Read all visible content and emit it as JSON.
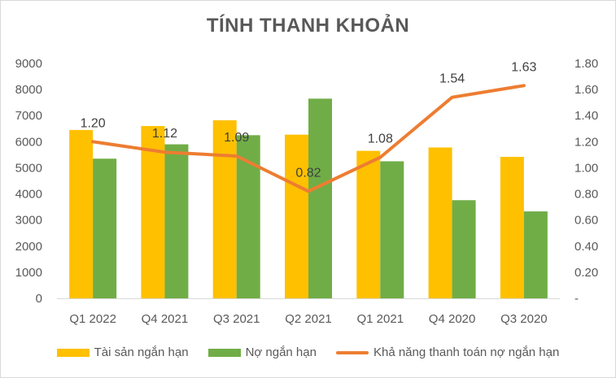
{
  "chart_data": {
    "type": "bar",
    "title": "TÍNH THANH KHOẢN",
    "categories": [
      "Q1 2022",
      "Q4 2021",
      "Q3 2021",
      "Q2 2021",
      "Q1 2021",
      "Q4 2020",
      "Q3 2020"
    ],
    "series": [
      {
        "name": "Tài sản ngắn hạn",
        "type": "bar",
        "axis": "left",
        "color": "#ffc000",
        "values": [
          6450,
          6600,
          6820,
          6270,
          5650,
          5780,
          5420
        ]
      },
      {
        "name": "Nợ ngắn hạn",
        "type": "bar",
        "axis": "left",
        "color": "#70ad47",
        "values": [
          5350,
          5900,
          6250,
          7650,
          5250,
          3760,
          3330
        ]
      },
      {
        "name": "Khả năng thanh toán nợ ngắn hạn",
        "type": "line",
        "axis": "right",
        "color": "#ed7d31",
        "values": [
          1.2,
          1.12,
          1.09,
          0.82,
          1.08,
          1.54,
          1.63
        ],
        "labels": [
          "1.20",
          "1.12",
          "1.09",
          "0.82",
          "1.08",
          "1.54",
          "1.63"
        ]
      }
    ],
    "y_left": {
      "ylim": [
        0,
        9000
      ],
      "ticks": [
        "0",
        "1000",
        "2000",
        "3000",
        "4000",
        "5000",
        "6000",
        "7000",
        "8000",
        "9000"
      ]
    },
    "y_right": {
      "ylim": [
        0,
        1.8
      ],
      "ticks": [
        "-",
        "0.20",
        "0.40",
        "0.60",
        "0.80",
        "1.00",
        "1.20",
        "1.40",
        "1.60",
        "1.80"
      ]
    },
    "grid": false,
    "legend_position": "bottom"
  }
}
